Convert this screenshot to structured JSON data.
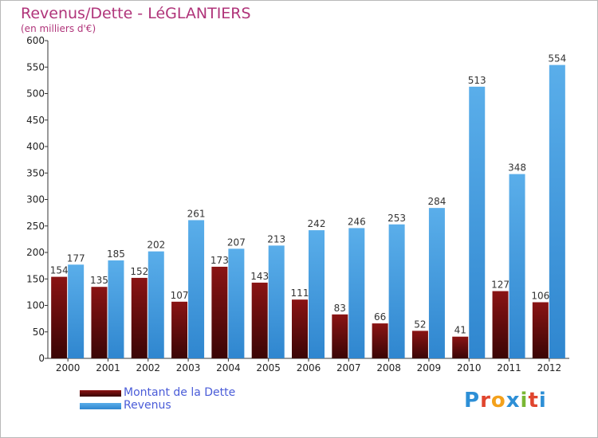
{
  "chart_data": {
    "type": "bar",
    "title": "Revenus/Dette - LéGLANTIERS",
    "subtitle": "(en milliers d'€)",
    "categories": [
      "2000",
      "2001",
      "2002",
      "2003",
      "2004",
      "2005",
      "2006",
      "2007",
      "2008",
      "2009",
      "2010",
      "2011",
      "2012"
    ],
    "series": [
      {
        "name": "Montant de la Dette",
        "color": "#7a1010",
        "values": [
          154,
          135,
          152,
          107,
          173,
          143,
          111,
          83,
          66,
          52,
          41,
          127,
          106
        ]
      },
      {
        "name": "Revenus",
        "color": "#4ea6e6",
        "values": [
          177,
          185,
          202,
          261,
          207,
          213,
          242,
          246,
          253,
          284,
          513,
          348,
          554
        ]
      }
    ],
    "ylim": [
      0,
      600
    ],
    "yticks": [
      0,
      50,
      100,
      150,
      200,
      250,
      300,
      350,
      400,
      450,
      500,
      550,
      600
    ],
    "grid": false,
    "legend": "bottom-left"
  },
  "logo": {
    "text": "Proxiti"
  }
}
